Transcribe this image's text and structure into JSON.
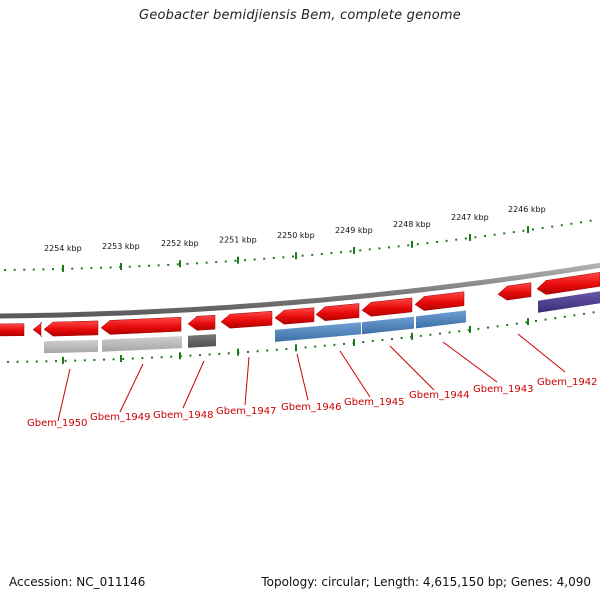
{
  "header": {
    "title": "Geobacter bemidjiensis Bem, complete genome"
  },
  "footer": {
    "accession": "Accession: NC_011146",
    "summary": "Topology: circular; Length: 4,615,150 bp; Genes: 4,090"
  },
  "colors": {
    "backbone": "#8c8c8c",
    "forward_gene": "#ee1111",
    "reverse_blue": "#4a82bb",
    "reverse_light_gray": "#b8b8b8",
    "reverse_dark_gray": "#666666",
    "reverse_purple": "#4e3f8f",
    "tick": "#1a7a1a",
    "label": "#cc0000"
  },
  "ruler": {
    "unit": "kbp",
    "ticks": [
      {
        "label": "2254 kbp"
      },
      {
        "label": "2253 kbp"
      },
      {
        "label": "2252 kbp"
      },
      {
        "label": "2251 kbp"
      },
      {
        "label": "2250 kbp"
      },
      {
        "label": "2249 kbp"
      },
      {
        "label": "2248 kbp"
      },
      {
        "label": "2247 kbp"
      },
      {
        "label": "2246 kbp"
      }
    ]
  },
  "gene_labels": [
    {
      "name": "Gbem_1950"
    },
    {
      "name": "Gbem_1949"
    },
    {
      "name": "Gbem_1948"
    },
    {
      "name": "Gbem_1947"
    },
    {
      "name": "Gbem_1946"
    },
    {
      "name": "Gbem_1945"
    },
    {
      "name": "Gbem_1944"
    },
    {
      "name": "Gbem_1943"
    },
    {
      "name": "Gbem_1942"
    }
  ]
}
